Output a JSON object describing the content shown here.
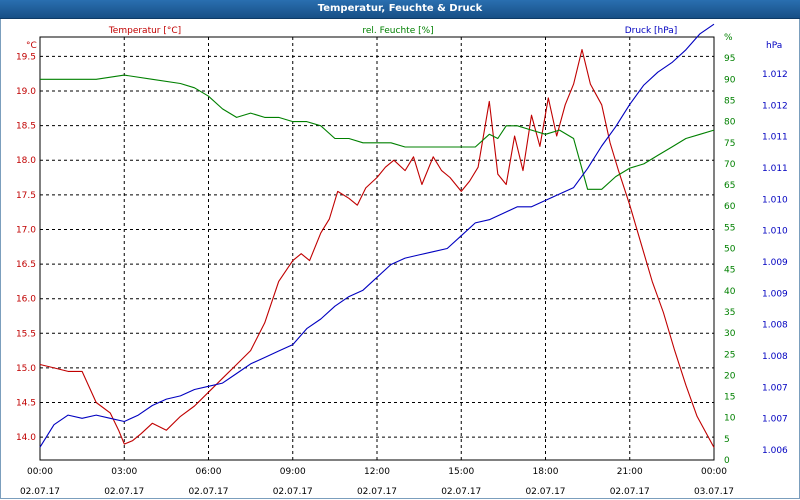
{
  "window": {
    "title": "Temperatur, Feuchte & Druck"
  },
  "colors": {
    "temperature": "#c00000",
    "humidity": "#008000",
    "pressure": "#0000c0",
    "grid": "#000000",
    "axis_text": "#000000"
  },
  "chart_data": {
    "type": "line",
    "title": "Temperatur, Feuchte & Druck",
    "grid": true,
    "x": {
      "ticks": [
        {
          "time": "00:00",
          "date": "02.07.17"
        },
        {
          "time": "03:00",
          "date": "02.07.17"
        },
        {
          "time": "06:00",
          "date": "02.07.17"
        },
        {
          "time": "09:00",
          "date": "02.07.17"
        },
        {
          "time": "12:00",
          "date": "02.07.17"
        },
        {
          "time": "15:00",
          "date": "02.07.17"
        },
        {
          "time": "18:00",
          "date": "02.07.17"
        },
        {
          "time": "21:00",
          "date": "02.07.17"
        },
        {
          "time": "00:00",
          "date": "03.07.17"
        }
      ],
      "range_hours": [
        0,
        24
      ]
    },
    "axes": {
      "left": {
        "unit": "°C",
        "label": "Temperatur [°C]",
        "ylim": [
          13.67,
          19.78
        ],
        "ticks": [
          "14.0",
          "14.5",
          "15.0",
          "15.5",
          "16.0",
          "16.5",
          "17.0",
          "17.5",
          "18.0",
          "18.5",
          "19.0",
          "19.5"
        ]
      },
      "middle": {
        "unit": "%",
        "label": "rel. Feuchte [%]",
        "ylim": [
          0,
          100
        ],
        "ticks": [
          "0",
          "5",
          "10",
          "15",
          "20",
          "25",
          "30",
          "35",
          "40",
          "45",
          "50",
          "55",
          "60",
          "65",
          "70",
          "75",
          "80",
          "85",
          "90",
          "95",
          "%"
        ]
      },
      "right": {
        "unit": "hPa",
        "label": "Druck [hPa]",
        "ylim": [
          1005.8,
          1012.4
        ],
        "ticks": [
          "1.006",
          "1.007",
          "1.007",
          "1.008",
          "1.008",
          "1.009",
          "1.009",
          "1.010",
          "1.010",
          "1.011",
          "1.011",
          "1.012",
          "1.012"
        ]
      }
    },
    "series": [
      {
        "name": "Temperatur [°C]",
        "axis": "left",
        "x": [
          0,
          0.5,
          1,
          1.5,
          2,
          2.5,
          2.8,
          3,
          3.3,
          3.6,
          4,
          4.5,
          5,
          5.5,
          6,
          6.5,
          7,
          7.5,
          8,
          8.5,
          9,
          9.3,
          9.6,
          10,
          10.3,
          10.6,
          11,
          11.3,
          11.6,
          12,
          12.3,
          12.6,
          13,
          13.3,
          13.6,
          14,
          14.3,
          14.6,
          15,
          15.3,
          15.6,
          16,
          16.3,
          16.6,
          16.9,
          17.2,
          17.5,
          17.8,
          18.1,
          18.4,
          18.7,
          19,
          19.3,
          19.6,
          20,
          20.3,
          20.6,
          21,
          21.4,
          21.8,
          22.2,
          22.6,
          23,
          23.4,
          24
        ],
        "values": [
          15.05,
          15.0,
          14.95,
          14.95,
          14.5,
          14.35,
          14.1,
          13.9,
          13.95,
          14.05,
          14.2,
          14.1,
          14.3,
          14.45,
          14.65,
          14.85,
          15.05,
          15.25,
          15.65,
          16.25,
          16.55,
          16.65,
          16.55,
          16.95,
          17.15,
          17.55,
          17.45,
          17.35,
          17.6,
          17.75,
          17.9,
          18.0,
          17.85,
          18.05,
          17.65,
          18.05,
          17.85,
          17.75,
          17.55,
          17.7,
          17.9,
          18.85,
          17.8,
          17.65,
          18.35,
          17.85,
          18.65,
          18.2,
          18.9,
          18.35,
          18.8,
          19.1,
          19.6,
          19.1,
          18.8,
          18.25,
          17.85,
          17.35,
          16.8,
          16.25,
          15.8,
          15.25,
          14.75,
          14.3,
          13.85
        ]
      },
      {
        "name": "rel. Feuchte [%]",
        "axis": "middle",
        "x": [
          0,
          1,
          2,
          3,
          4,
          5,
          5.5,
          6,
          6.5,
          7,
          7.5,
          8,
          8.5,
          9,
          9.5,
          10,
          10.5,
          11,
          11.5,
          12,
          12.5,
          13,
          13.5,
          14,
          14.5,
          15,
          15.5,
          16,
          16.3,
          16.6,
          17,
          17.5,
          18,
          18.5,
          19,
          19.5,
          20,
          20.5,
          21,
          21.5,
          22,
          22.5,
          23,
          23.5,
          24
        ],
        "values": [
          90,
          90,
          90,
          91,
          90,
          89,
          88,
          86,
          83,
          81,
          82,
          81,
          81,
          80,
          80,
          79,
          76,
          76,
          75,
          75,
          75,
          74,
          74,
          74,
          74,
          74,
          74,
          77,
          76,
          79,
          79,
          78,
          77,
          78,
          76,
          64,
          64,
          67,
          69,
          70,
          72,
          74,
          76,
          77,
          78
        ]
      },
      {
        "name": "Druck [hPa]",
        "axis": "right",
        "x": [
          0,
          0.5,
          1,
          1.5,
          2,
          2.5,
          3,
          3.5,
          4,
          4.5,
          5,
          5.5,
          6,
          6.5,
          7,
          7.5,
          8,
          8.5,
          9,
          9.5,
          10,
          10.5,
          11,
          11.5,
          12,
          12.5,
          13,
          13.5,
          14,
          14.5,
          15,
          15.5,
          16,
          16.5,
          17,
          17.5,
          18,
          18.5,
          19,
          19.5,
          20,
          20.5,
          21,
          21.5,
          22,
          22.5,
          23,
          23.5,
          24
        ],
        "values": [
          1006.0,
          1006.35,
          1006.5,
          1006.45,
          1006.5,
          1006.45,
          1006.4,
          1006.5,
          1006.65,
          1006.75,
          1006.8,
          1006.9,
          1006.95,
          1007.0,
          1007.15,
          1007.3,
          1007.4,
          1007.5,
          1007.6,
          1007.85,
          1008.0,
          1008.2,
          1008.35,
          1008.45,
          1008.65,
          1008.85,
          1008.95,
          1009.0,
          1009.05,
          1009.1,
          1009.3,
          1009.5,
          1009.55,
          1009.65,
          1009.75,
          1009.75,
          1009.85,
          1009.95,
          1010.05,
          1010.35,
          1010.7,
          1011.0,
          1011.35,
          1011.65,
          1011.85,
          1012.0,
          1012.2,
          1012.45,
          1012.6
        ]
      }
    ]
  }
}
